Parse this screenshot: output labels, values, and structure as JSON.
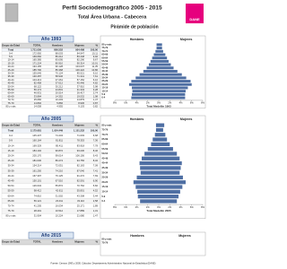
{
  "header": {
    "title": "Perfil Sociodemográfico 2005 - 2015",
    "subtitle": "Total Área Urbana - Cabecera",
    "section_title": "Pirámide de población",
    "logo_text": "DANE"
  },
  "table_header": [
    "Grupo de Edad",
    "TOTAL",
    "Hombres",
    "Mujeres",
    "%"
  ],
  "sections": [
    {
      "year_label": "Año 1993",
      "rows": [
        [
          "Total",
          "1.711.050",
          "806.552",
          "904.498",
          "100,00"
        ],
        [
          "0-4",
          "172.950",
          "88.003",
          "84.947",
          "10,11"
        ],
        [
          "5-9",
          "169.660",
          "86.212",
          "83.448",
          "9,92"
        ],
        [
          "10-14",
          "165.385",
          "83.095",
          "82.290",
          "9,67"
        ],
        [
          "15-19",
          "171.224",
          "80.910",
          "90.314",
          "10,01"
        ],
        [
          "20-24",
          "194.165",
          "90.128",
          "104.037",
          "11,35"
        ],
        [
          "25-29",
          "185.790",
          "85.368",
          "100.422",
          "10,86"
        ],
        [
          "30-34",
          "155.645",
          "70.124",
          "85.521",
          "9,10"
        ],
        [
          "35-39",
          "130.287",
          "58.946",
          "71.341",
          "7,61"
        ],
        [
          "40-44",
          "104.413",
          "47.261",
          "57.152",
          "6,10"
        ],
        [
          "45-49",
          "82.458",
          "37.012",
          "45.446",
          "4,82"
        ],
        [
          "50-54",
          "68.122",
          "30.212",
          "37.910",
          "3,98"
        ],
        [
          "55-59",
          "56.174",
          "24.831",
          "31.343",
          "3,28"
        ],
        [
          "60-64",
          "46.931",
          "20.514",
          "26.417",
          "2,74"
        ],
        [
          "65-69",
          "33.884",
          "14.352",
          "19.532",
          "1,98"
        ],
        [
          "70-74",
          "25.082",
          "10.203",
          "14.879",
          "1,47"
        ],
        [
          "75-79",
          "14.802",
          "5.866",
          "8.936",
          "0,87"
        ],
        [
          "80 y más",
          "14.058",
          "4.955",
          "9.103",
          "0,82"
        ]
      ],
      "pyramid": {
        "type": "bar",
        "categories": [
          "80 y más",
          "75-79",
          "70-74",
          "65-69",
          "60-64",
          "55-59",
          "50-54",
          "45-49",
          "40-44",
          "35-39",
          "30-34",
          "25-29",
          "20-24",
          "15-19",
          "10-14",
          "5-9",
          "0-4"
        ],
        "series": [
          {
            "name": "Hombres",
            "color": "#4f6fa3",
            "values": [
              0.4,
              0.4,
              0.6,
              0.9,
              1.2,
              1.5,
              1.8,
              2.2,
              2.8,
              3.5,
              4.2,
              5.0,
              5.4,
              4.9,
              4.8,
              4.9,
              5.0
            ]
          },
          {
            "name": "Mujeres",
            "color": "#4f6fa3",
            "values": [
              0.6,
              0.6,
              0.8,
              1.2,
              1.5,
              1.8,
              2.2,
              2.7,
              3.4,
              4.2,
              5.0,
              5.8,
              6.0,
              5.3,
              4.9,
              4.8,
              4.8
            ]
          }
        ],
        "xlim": [
          -8,
          8
        ],
        "xticks": [
          {
            "value": -8,
            "label": "8%"
          },
          {
            "value": -6,
            "label": "6%"
          },
          {
            "value": -4,
            "label": "4%"
          },
          {
            "value": -2,
            "label": "2%"
          },
          {
            "value": 0,
            "label": "0%"
          },
          {
            "value": 2,
            "label": "2%"
          },
          {
            "value": 4,
            "label": "4%"
          },
          {
            "value": 6,
            "label": "6%"
          },
          {
            "value": 8,
            "label": "8%"
          }
        ],
        "caption": "Total Medellín 1993"
      }
    },
    {
      "year_label": "Año 2005",
      "rows": [
        [
          "Total",
          "2.175.681",
          "1.024.449",
          "1.151.232",
          "100,00"
        ],
        [
          "0-4",
          "145.437",
          "74.434",
          "71.003",
          "6,68"
        ],
        [
          "5-9",
          "160.164",
          "81.811",
          "78.353",
          "7,36"
        ],
        [
          "10-14",
          "169.329",
          "85.411",
          "83.918",
          "7,78"
        ],
        [
          "15-19",
          "184.102",
          "90.872",
          "93.230",
          "8,46"
        ],
        [
          "20-24",
          "205.170",
          "99.014",
          "106.156",
          "9,43"
        ],
        [
          "25-29",
          "181.030",
          "86.274",
          "94.756",
          "8,32"
        ],
        [
          "30-34",
          "154.214",
          "72.051",
          "82.163",
          "7,09"
        ],
        [
          "35-39",
          "161.250",
          "74.210",
          "87.040",
          "7,41"
        ],
        [
          "40-44",
          "167.397",
          "76.125",
          "91.272",
          "7,69"
        ],
        [
          "45-49",
          "150.101",
          "67.510",
          "82.591",
          "6,90"
        ],
        [
          "50-54",
          "126.634",
          "55.872",
          "70.762",
          "5,82"
        ],
        [
          "55-59",
          "98.412",
          "42.611",
          "55.801",
          "4,52"
        ],
        [
          "60-64",
          "74.810",
          "31.502",
          "43.308",
          "3,44"
        ],
        [
          "65-69",
          "56.121",
          "23.011",
          "33.110",
          "2,58"
        ],
        [
          "70-74",
          "41.205",
          "16.034",
          "25.171",
          "1,89"
        ],
        [
          "75-79",
          "28.401",
          "10.512",
          "17.889",
          "1,31"
        ],
        [
          "80 y más",
          "31.904",
          "10.224",
          "21.680",
          "1,47"
        ]
      ],
      "pyramid": {
        "type": "bar",
        "categories": [
          "80 y más",
          "75-79",
          "70-74",
          "65-69",
          "60-64",
          "55-59",
          "50-54",
          "45-49",
          "40-44",
          "35-39",
          "30-34",
          "25-29",
          "20-24",
          "15-19",
          "10-14",
          "5-9",
          "0-4"
        ],
        "series": [
          {
            "name": "Hombres",
            "color": "#4f6fa3",
            "values": [
              0.5,
              0.5,
              0.7,
              1.1,
              1.4,
              2.0,
              2.6,
              3.1,
              3.5,
              3.4,
              3.3,
              4.0,
              4.6,
              4.2,
              3.9,
              3.8,
              3.4
            ]
          },
          {
            "name": "Mujeres",
            "color": "#4f6fa3",
            "values": [
              1.0,
              0.8,
              1.2,
              1.5,
              2.0,
              2.6,
              3.3,
              3.8,
              4.2,
              4.0,
              3.8,
              4.4,
              4.9,
              4.3,
              3.9,
              3.6,
              3.3
            ]
          }
        ],
        "xlim": [
          -8,
          8
        ],
        "xticks": [
          {
            "value": -8,
            "label": "8%"
          },
          {
            "value": -6,
            "label": "6%"
          },
          {
            "value": -4,
            "label": "4%"
          },
          {
            "value": -2,
            "label": "2%"
          },
          {
            "value": 0,
            "label": "0%"
          },
          {
            "value": 2,
            "label": "2%"
          },
          {
            "value": 4,
            "label": "4%"
          },
          {
            "value": 6,
            "label": "6%"
          },
          {
            "value": 8,
            "label": "8%"
          }
        ],
        "caption": "Total Medellín 2005"
      }
    },
    {
      "year_label": "Año 2015",
      "visible_labels": [
        "80 y más",
        "75-79",
        "Hombres",
        "Mujeres"
      ]
    }
  ],
  "footer": "Fuente: Censos 1993 y 2005. Cálculos: Departamento Administrativo Nacional de Estadística (DANE)"
}
